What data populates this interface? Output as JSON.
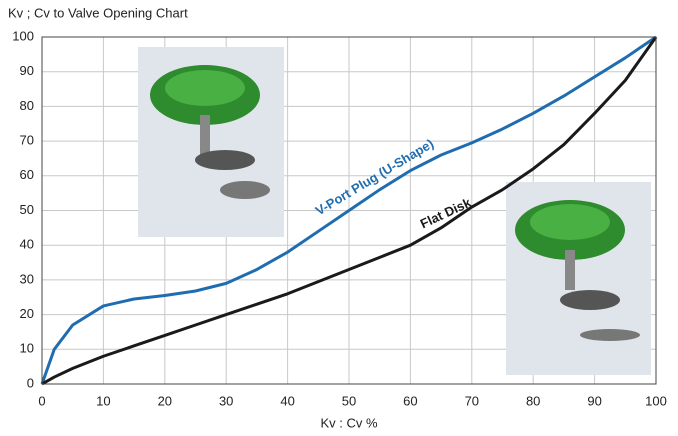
{
  "chart_data": {
    "type": "line",
    "title": "Kv ; Cv  to Valve Opening Chart",
    "x_label": "Kv : Cv %",
    "x": [
      0,
      2,
      5,
      10,
      15,
      20,
      25,
      30,
      35,
      40,
      45,
      50,
      55,
      60,
      65,
      70,
      75,
      80,
      85,
      90,
      95,
      100
    ],
    "series": [
      {
        "name": "V-Port Plug (U-Shape)",
        "color": "#1f6db0",
        "values": [
          0,
          10,
          17,
          22.5,
          24.5,
          25.5,
          26.8,
          29,
          33,
          38,
          44,
          50,
          56,
          61.5,
          66,
          69.5,
          73.5,
          78,
          83,
          88.5,
          94,
          100
        ]
      },
      {
        "name": "Flat Disk",
        "color": "#1a1a1a",
        "values": [
          0,
          2,
          4.5,
          8,
          11,
          14,
          17,
          20,
          23,
          26,
          29.5,
          33,
          36.5,
          40,
          45,
          51,
          56,
          62,
          69,
          78,
          87.5,
          100
        ]
      }
    ],
    "xlim": [
      0,
      100
    ],
    "xticks": [
      0,
      10,
      20,
      30,
      40,
      50,
      60,
      70,
      80,
      90,
      100
    ],
    "ylim": [
      0,
      100
    ],
    "yticks": [
      0,
      10,
      20,
      30,
      40,
      50,
      60,
      70,
      80,
      90,
      100
    ],
    "grid": true
  }
}
